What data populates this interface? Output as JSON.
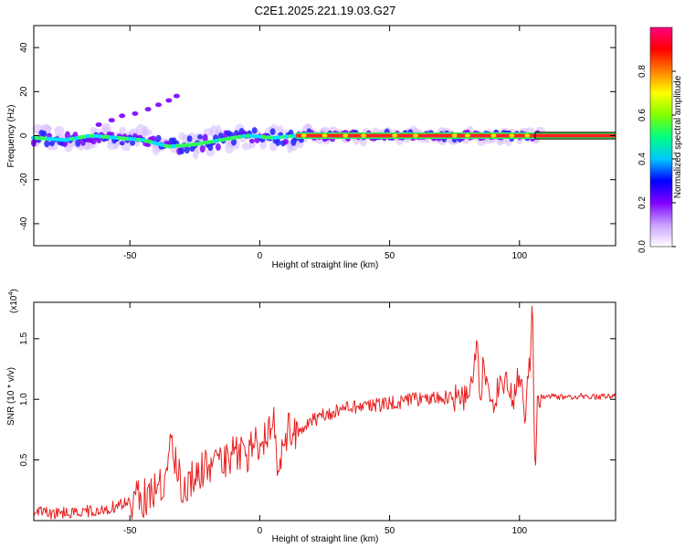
{
  "page": {
    "title": "C2E1.2025.221.19.03.G27"
  },
  "chart_data": [
    {
      "type": "heatmap",
      "xlabel": "Height of straight line (km)",
      "ylabel": "Frequency (Hz)",
      "xlim": [
        -87,
        137
      ],
      "ylim": [
        -50,
        50
      ],
      "xticks": [
        -50,
        0,
        50,
        100
      ],
      "yticks": [
        -40,
        -20,
        0,
        20,
        40
      ],
      "colorbar": {
        "label": "Normalized spectral amplitude",
        "range": [
          0.0,
          1.0
        ],
        "ticks": [
          "0.0",
          "0.2",
          "0.4",
          "0.6",
          "0.8"
        ],
        "tick_values": [
          0.0,
          0.2,
          0.4,
          0.6,
          0.8
        ],
        "colors": [
          "#ffffff",
          "#c8a0ff",
          "#8000ff",
          "#0000ff",
          "#00c8ff",
          "#00ff80",
          "#80ff00",
          "#ffff00",
          "#ff8000",
          "#ff0000",
          "#ff0080"
        ]
      },
      "ridge": {
        "x": [
          -87,
          -75,
          -65,
          -55,
          -45,
          -35,
          -25,
          -15,
          -5,
          5,
          15,
          25,
          50,
          75,
          100,
          137
        ],
        "y": [
          -1,
          -2,
          0,
          -1,
          -2,
          -5,
          -4,
          -2,
          0,
          -1,
          0,
          0,
          0,
          0,
          0,
          0
        ]
      },
      "harmonic": {
        "x": [
          -62,
          -57,
          -53,
          -48,
          -43,
          -39,
          -35,
          -32
        ],
        "y": [
          5,
          7,
          9,
          10,
          12,
          14,
          16,
          18
        ]
      }
    },
    {
      "type": "line",
      "xlabel": "Height of straight line (km)",
      "ylabel": "SNR (10 * v/v)",
      "yunit": "(x10",
      "yunit_exp": "4",
      "yunit_close": ")",
      "xlim": [
        -87,
        137
      ],
      "ylim": [
        0,
        1.8
      ],
      "xticks": [
        -50,
        0,
        50,
        100
      ],
      "yticks": [
        0.5,
        1.0,
        1.5
      ],
      "ytick_labels": [
        "0.5",
        "1.0",
        "1.5"
      ],
      "series": [
        {
          "color": "#e82020",
          "x": [
            -87,
            -80,
            -70,
            -60,
            -55,
            -50,
            -45,
            -40,
            -36,
            -35,
            -30,
            -25,
            -20,
            -15,
            -10,
            -5,
            0,
            3,
            5,
            7,
            9,
            12,
            15,
            20,
            25,
            30,
            35,
            40,
            45,
            50,
            55,
            60,
            65,
            70,
            75,
            80,
            84,
            85,
            86,
            90,
            95,
            98,
            100,
            102,
            104,
            105,
            106,
            107,
            108,
            110,
            115,
            120,
            125,
            130,
            137
          ],
          "y": [
            0.08,
            0.06,
            0.07,
            0.09,
            0.12,
            0.15,
            0.18,
            0.25,
            0.35,
            0.65,
            0.3,
            0.35,
            0.45,
            0.45,
            0.55,
            0.55,
            0.65,
            0.7,
            0.9,
            0.4,
            0.7,
            0.75,
            0.75,
            0.82,
            0.88,
            0.9,
            0.93,
            0.95,
            0.95,
            0.97,
            0.98,
            1.0,
            1.0,
            1.02,
            1.0,
            1.02,
            1.45,
            0.85,
            1.3,
            1.0,
            1.2,
            1.0,
            1.25,
            0.85,
            1.3,
            1.8,
            0.4,
            1.05,
            1.02,
            1.03,
            1.02,
            1.02,
            1.03,
            1.02,
            1.03
          ]
        }
      ]
    }
  ]
}
